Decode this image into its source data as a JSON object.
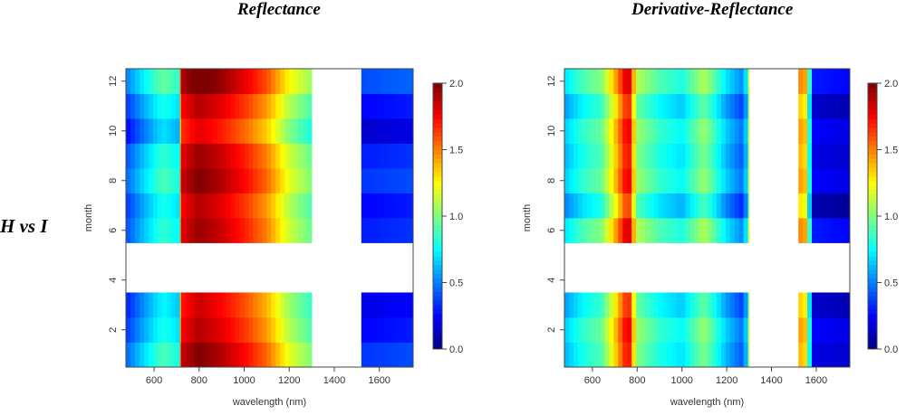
{
  "row_label": "H vs I",
  "colormap": [
    "#00007f",
    "#0000ff",
    "#007fff",
    "#00ffff",
    "#7fff7f",
    "#ffff00",
    "#ff7f00",
    "#ff0000",
    "#7f0000"
  ],
  "chart_data": [
    {
      "type": "heatmap",
      "title": "Reflectance",
      "xlabel": "wavelength (nm)",
      "ylabel": "month",
      "xlim": [
        475,
        1750
      ],
      "ylim": [
        0.5,
        12.5
      ],
      "xticks": [
        "600",
        "800",
        "1000",
        "1200",
        "1400",
        "1600"
      ],
      "yticks": [
        "2",
        "4",
        "6",
        "8",
        "10",
        "12"
      ],
      "color_range": [
        0,
        2
      ],
      "colorbar_ticks": [
        "0.0",
        "0.5",
        "1.0",
        "1.5",
        "2.0"
      ],
      "wavelength_bands": [
        {
          "start": 475,
          "end": 720
        },
        {
          "start": 720,
          "end": 1300
        },
        {
          "start": 1520,
          "end": 1750
        }
      ],
      "months": [
        1,
        2,
        3,
        6,
        7,
        8,
        9,
        10,
        11,
        12
      ],
      "missing_months": [
        4,
        5
      ],
      "band_profile": [
        {
          "x": [
            475,
            560,
            640,
            705,
            720
          ],
          "v": [
            0.35,
            0.6,
            0.8,
            0.7,
            1.6
          ]
        },
        {
          "x": [
            720,
            800,
            900,
            1000,
            1100,
            1200,
            1300
          ],
          "v": [
            1.75,
            1.9,
            1.8,
            1.65,
            1.45,
            1.1,
            0.9
          ]
        },
        {
          "x": [
            1520,
            1750
          ],
          "v": [
            0.25,
            0.3
          ]
        }
      ],
      "month_offsets": {
        "1": 0.1,
        "2": 0.0,
        "3": -0.05,
        "6": 0.05,
        "7": 0.0,
        "8": 0.1,
        "9": 0.05,
        "10": -0.1,
        "11": 0.0,
        "12": 0.15
      }
    },
    {
      "type": "heatmap",
      "title": "Derivative-Reflectance",
      "xlabel": "wavelength (nm)",
      "ylabel": "month",
      "xlim": [
        475,
        1750
      ],
      "ylim": [
        0.5,
        12.5
      ],
      "xticks": [
        "600",
        "800",
        "1000",
        "1200",
        "1400",
        "1600"
      ],
      "yticks": [
        "2",
        "4",
        "6",
        "8",
        "10",
        "12"
      ],
      "color_range": [
        0,
        2
      ],
      "colorbar_ticks": [
        "0.0",
        "0.5",
        "1.0",
        "1.5",
        "2.0"
      ],
      "wavelength_bands": [
        {
          "start": 475,
          "end": 1300
        },
        {
          "start": 1520,
          "end": 1750
        }
      ],
      "months": [
        1,
        2,
        3,
        6,
        7,
        8,
        9,
        10,
        11,
        12
      ],
      "missing_months": [
        4,
        5
      ],
      "band_profile": [
        {
          "x": [
            475,
            560,
            640,
            700,
            760,
            800,
            900,
            1000,
            1100,
            1200,
            1280,
            1300
          ],
          "v": [
            0.6,
            0.8,
            0.9,
            1.3,
            1.8,
            1.0,
            0.8,
            0.7,
            1.0,
            0.6,
            0.4,
            1.2
          ]
        },
        {
          "x": [
            1520,
            1560,
            1580,
            1750
          ],
          "v": [
            1.4,
            1.3,
            0.2,
            0.15
          ]
        }
      ],
      "month_offsets": {
        "1": 0.0,
        "2": 0.05,
        "3": -0.05,
        "6": 0.1,
        "7": -0.1,
        "8": 0.05,
        "9": 0.0,
        "10": 0.05,
        "11": -0.05,
        "12": 0.1
      }
    }
  ]
}
